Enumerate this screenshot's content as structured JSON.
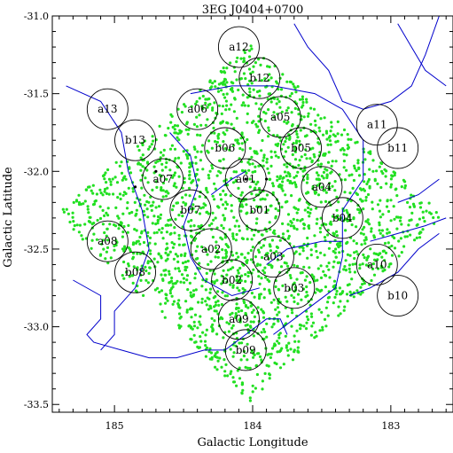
{
  "chart_data": {
    "type": "scatter",
    "title": "3EG J0404+0700",
    "xlabel": "Galactic Longitude",
    "ylabel": "Galactic Latitude",
    "xlim": [
      185.45,
      182.55
    ],
    "ylim": [
      -33.55,
      -31.0
    ],
    "x_reversed": true,
    "grid": false,
    "x_ticks": [
      {
        "value": 185,
        "label": "185"
      },
      {
        "value": 184,
        "label": "184"
      },
      {
        "value": 183,
        "label": "183"
      }
    ],
    "y_ticks": [
      {
        "value": -31.0,
        "label": "-31.0"
      },
      {
        "value": -31.5,
        "label": "-31.5"
      },
      {
        "value": -32.0,
        "label": "-32.0"
      },
      {
        "value": -32.5,
        "label": "-32.5"
      },
      {
        "value": -33.0,
        "label": "-33.0"
      },
      {
        "value": -33.5,
        "label": "-33.5"
      }
    ],
    "colors": {
      "points": "#22e022",
      "contours": "#0000cc",
      "circles": "#000000",
      "axes": "#000000"
    },
    "point_region": {
      "shape": "rotated square",
      "vertices": [
        [
          184.02,
          -31.18
        ],
        [
          182.62,
          -32.28
        ],
        [
          184.02,
          -33.48
        ],
        [
          185.42,
          -32.28
        ]
      ],
      "approx_point_count": 2200
    },
    "contours": [
      {
        "points": [
          [
            185.35,
            -31.45
          ],
          [
            185.1,
            -31.55
          ],
          [
            184.95,
            -31.75
          ],
          [
            184.9,
            -32.0
          ],
          [
            184.8,
            -32.25
          ],
          [
            184.75,
            -32.5
          ],
          [
            184.85,
            -32.75
          ],
          [
            185.0,
            -32.9
          ],
          [
            185.0,
            -33.05
          ],
          [
            185.1,
            -33.15
          ]
        ]
      },
      {
        "points": [
          [
            185.3,
            -32.7
          ],
          [
            185.1,
            -32.8
          ],
          [
            185.1,
            -32.95
          ],
          [
            185.2,
            -33.05
          ],
          [
            185.15,
            -33.1
          ],
          [
            184.95,
            -33.15
          ],
          [
            184.75,
            -33.2
          ],
          [
            184.55,
            -33.2
          ],
          [
            184.35,
            -33.15
          ],
          [
            184.2,
            -33.15
          ],
          [
            184.05,
            -33.05
          ],
          [
            183.9,
            -32.95
          ],
          [
            183.8,
            -32.95
          ],
          [
            183.75,
            -33.05
          ]
        ]
      },
      {
        "points": [
          [
            184.45,
            -31.5
          ],
          [
            184.15,
            -31.45
          ],
          [
            183.85,
            -31.45
          ],
          [
            183.55,
            -31.5
          ],
          [
            183.35,
            -31.6
          ],
          [
            183.2,
            -31.8
          ],
          [
            183.2,
            -32.05
          ],
          [
            183.35,
            -32.25
          ],
          [
            183.35,
            -32.55
          ],
          [
            183.4,
            -32.75
          ],
          [
            183.55,
            -32.85
          ],
          [
            183.7,
            -32.95
          ],
          [
            183.85,
            -33.05
          ]
        ]
      },
      {
        "points": [
          [
            184.6,
            -31.75
          ],
          [
            184.45,
            -31.9
          ],
          [
            184.4,
            -32.1
          ],
          [
            184.5,
            -32.35
          ],
          [
            184.45,
            -32.55
          ],
          [
            184.35,
            -32.7
          ],
          [
            184.15,
            -32.8
          ],
          [
            183.95,
            -32.75
          ]
        ]
      },
      {
        "points": [
          [
            183.9,
            -32.6
          ],
          [
            183.75,
            -32.5
          ],
          [
            183.5,
            -32.45
          ],
          [
            183.35,
            -32.45
          ]
        ]
      },
      {
        "points": [
          [
            183.15,
            -32.45
          ],
          [
            182.95,
            -32.4
          ],
          [
            182.75,
            -32.35
          ],
          [
            182.6,
            -32.3
          ]
        ]
      },
      {
        "points": [
          [
            183.3,
            -32.8
          ],
          [
            183.15,
            -32.75
          ],
          [
            182.95,
            -32.65
          ],
          [
            182.8,
            -32.5
          ],
          [
            182.65,
            -32.4
          ]
        ]
      },
      {
        "points": [
          [
            182.65,
            -32.05
          ],
          [
            182.8,
            -32.15
          ],
          [
            182.95,
            -32.2
          ]
        ]
      },
      {
        "points": [
          [
            183.7,
            -31.05
          ],
          [
            183.6,
            -31.2
          ],
          [
            183.45,
            -31.35
          ],
          [
            183.35,
            -31.55
          ],
          [
            183.2,
            -31.6
          ],
          [
            183.0,
            -31.55
          ],
          [
            182.85,
            -31.45
          ],
          [
            182.75,
            -31.25
          ],
          [
            182.65,
            -31.0
          ]
        ]
      },
      {
        "points": [
          [
            182.95,
            -31.05
          ],
          [
            182.85,
            -31.2
          ],
          [
            182.75,
            -31.35
          ],
          [
            182.6,
            -31.45
          ]
        ]
      },
      {
        "points": [
          [
            184.3,
            -32.15
          ],
          [
            184.15,
            -32.05
          ],
          [
            184.05,
            -32.0
          ]
        ]
      }
    ],
    "circles": [
      {
        "label": "a12",
        "x": 184.1,
        "y": -31.2
      },
      {
        "label": "b12",
        "x": 183.95,
        "y": -31.4
      },
      {
        "label": "a13",
        "x": 185.05,
        "y": -31.6
      },
      {
        "label": "a06",
        "x": 184.4,
        "y": -31.6
      },
      {
        "label": "a05",
        "x": 183.8,
        "y": -31.65
      },
      {
        "label": "a11",
        "x": 183.1,
        "y": -31.7
      },
      {
        "label": "b13",
        "x": 184.85,
        "y": -31.8
      },
      {
        "label": "b06",
        "x": 184.2,
        "y": -31.85
      },
      {
        "label": "b05",
        "x": 183.65,
        "y": -31.85
      },
      {
        "label": "b11",
        "x": 182.95,
        "y": -31.85
      },
      {
        "label": "a07",
        "x": 184.65,
        "y": -32.05
      },
      {
        "label": "a01",
        "x": 184.05,
        "y": -32.05
      },
      {
        "label": "a04",
        "x": 183.5,
        "y": -32.1
      },
      {
        "label": "b07",
        "x": 184.45,
        "y": -32.25
      },
      {
        "label": "b01",
        "x": 183.95,
        "y": -32.25
      },
      {
        "label": "b04",
        "x": 183.35,
        "y": -32.3
      },
      {
        "label": "a08",
        "x": 185.05,
        "y": -32.45
      },
      {
        "label": "a02",
        "x": 184.3,
        "y": -32.5
      },
      {
        "label": "a03",
        "x": 183.85,
        "y": -32.55
      },
      {
        "label": "a10",
        "x": 183.1,
        "y": -32.6
      },
      {
        "label": "b08",
        "x": 184.85,
        "y": -32.65
      },
      {
        "label": "b02",
        "x": 184.15,
        "y": -32.7
      },
      {
        "label": "b03",
        "x": 183.7,
        "y": -32.75
      },
      {
        "label": "b10",
        "x": 182.95,
        "y": -32.8
      },
      {
        "label": "a09",
        "x": 184.1,
        "y": -32.95
      },
      {
        "label": "b09",
        "x": 184.05,
        "y": -33.15
      }
    ],
    "black_points": [
      {
        "x": 184.05,
        "y": -32.05
      },
      {
        "x": 183.9,
        "y": -32.05
      },
      {
        "x": 184.7,
        "y": -32.0
      },
      {
        "x": 184.85,
        "y": -32.1
      }
    ]
  }
}
